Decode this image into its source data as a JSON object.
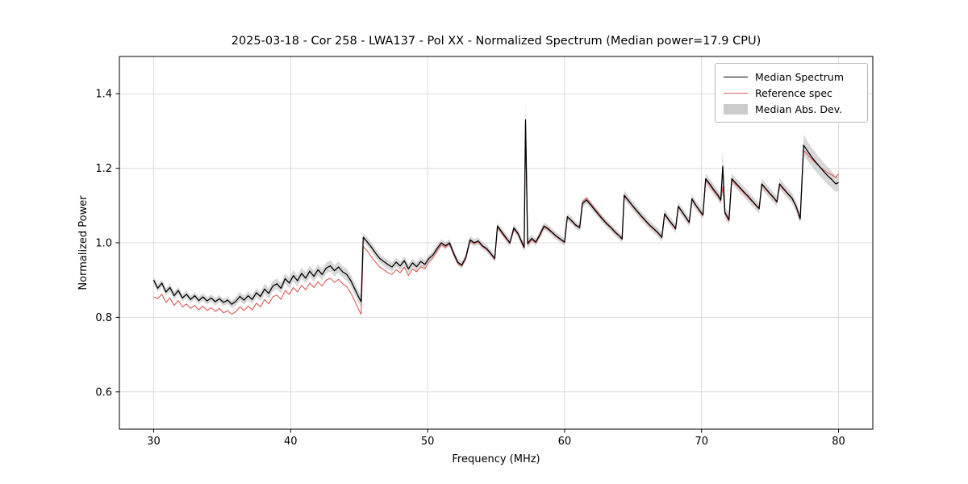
{
  "figure": {
    "background": "#ffffff"
  },
  "chart_data": {
    "type": "line",
    "title": "2025-03-18 - Cor 258 - LWA137 - Pol XX - Normalized Spectrum (Median power=17.9 CPU)",
    "xlabel": "Frequency (MHz)",
    "ylabel": "Normalized Power",
    "xlim": [
      27.5,
      82.5
    ],
    "ylim": [
      0.5,
      1.5
    ],
    "xticks": [
      30,
      40,
      50,
      60,
      70,
      80
    ],
    "xtick_labels": [
      "30",
      "40",
      "50",
      "60",
      "70",
      "80"
    ],
    "yticks": [
      0.6,
      0.8,
      1.0,
      1.2,
      1.4
    ],
    "ytick_labels": [
      "0.6",
      "0.8",
      "1.0",
      "1.2",
      "1.4"
    ],
    "grid": true,
    "grid_color": "#dcdcdc",
    "legend_position": "upper right",
    "series": [
      {
        "name": "Median Spectrum",
        "color": "#000000",
        "style": "line"
      },
      {
        "name": "Reference spec",
        "color": "#e05a5a",
        "style": "line"
      },
      {
        "name": "Median Abs. Dev.",
        "color": "#a8a8a8",
        "style": "band",
        "opacity": 0.45
      }
    ],
    "points_format": [
      "freq_mhz",
      "median",
      "reference",
      "mad_half_width"
    ],
    "points": [
      [
        30.0,
        0.9,
        0.855,
        0.01
      ],
      [
        30.3,
        0.878,
        0.85,
        0.01
      ],
      [
        30.6,
        0.892,
        0.862,
        0.01
      ],
      [
        30.9,
        0.868,
        0.84,
        0.01
      ],
      [
        31.2,
        0.88,
        0.852,
        0.01
      ],
      [
        31.5,
        0.858,
        0.832,
        0.01
      ],
      [
        31.8,
        0.872,
        0.845,
        0.01
      ],
      [
        32.1,
        0.852,
        0.828,
        0.01
      ],
      [
        32.4,
        0.862,
        0.836,
        0.01
      ],
      [
        32.7,
        0.848,
        0.824,
        0.01
      ],
      [
        33.0,
        0.858,
        0.832,
        0.01
      ],
      [
        33.3,
        0.845,
        0.82,
        0.01
      ],
      [
        33.6,
        0.855,
        0.83,
        0.01
      ],
      [
        33.9,
        0.844,
        0.818,
        0.01
      ],
      [
        34.2,
        0.852,
        0.826,
        0.01
      ],
      [
        34.5,
        0.842,
        0.816,
        0.01
      ],
      [
        34.8,
        0.85,
        0.824,
        0.01
      ],
      [
        35.1,
        0.84,
        0.812,
        0.01
      ],
      [
        35.4,
        0.846,
        0.818,
        0.01
      ],
      [
        35.7,
        0.835,
        0.808,
        0.01
      ],
      [
        36.0,
        0.843,
        0.815,
        0.012
      ],
      [
        36.3,
        0.856,
        0.828,
        0.012
      ],
      [
        36.6,
        0.846,
        0.818,
        0.012
      ],
      [
        36.9,
        0.858,
        0.83,
        0.012
      ],
      [
        37.2,
        0.848,
        0.82,
        0.012
      ],
      [
        37.5,
        0.866,
        0.838,
        0.012
      ],
      [
        37.8,
        0.856,
        0.828,
        0.012
      ],
      [
        38.1,
        0.876,
        0.848,
        0.014
      ],
      [
        38.4,
        0.864,
        0.836,
        0.014
      ],
      [
        38.7,
        0.884,
        0.855,
        0.014
      ],
      [
        39.0,
        0.89,
        0.86,
        0.014
      ],
      [
        39.3,
        0.878,
        0.848,
        0.014
      ],
      [
        39.6,
        0.904,
        0.872,
        0.014
      ],
      [
        39.9,
        0.892,
        0.862,
        0.014
      ],
      [
        40.2,
        0.912,
        0.88,
        0.015
      ],
      [
        40.5,
        0.898,
        0.868,
        0.015
      ],
      [
        40.8,
        0.918,
        0.886,
        0.015
      ],
      [
        41.1,
        0.905,
        0.874,
        0.015
      ],
      [
        41.4,
        0.924,
        0.892,
        0.015
      ],
      [
        41.7,
        0.91,
        0.88,
        0.015
      ],
      [
        42.0,
        0.928,
        0.895,
        0.015
      ],
      [
        42.3,
        0.915,
        0.884,
        0.015
      ],
      [
        42.6,
        0.932,
        0.9,
        0.015
      ],
      [
        42.9,
        0.938,
        0.905,
        0.015
      ],
      [
        43.2,
        0.925,
        0.894,
        0.015
      ],
      [
        43.5,
        0.935,
        0.902,
        0.015
      ],
      [
        43.8,
        0.922,
        0.89,
        0.015
      ],
      [
        44.1,
        0.915,
        0.882,
        0.016
      ],
      [
        44.4,
        0.898,
        0.865,
        0.016
      ],
      [
        44.7,
        0.875,
        0.842,
        0.016
      ],
      [
        45.0,
        0.852,
        0.818,
        0.016
      ],
      [
        45.15,
        0.842,
        0.808,
        0.014
      ],
      [
        45.3,
        1.015,
        0.99,
        0.012
      ],
      [
        45.6,
        1.002,
        0.978,
        0.012
      ],
      [
        45.9,
        0.988,
        0.962,
        0.012
      ],
      [
        46.2,
        0.972,
        0.948,
        0.012
      ],
      [
        46.5,
        0.958,
        0.935,
        0.012
      ],
      [
        46.8,
        0.95,
        0.928,
        0.012
      ],
      [
        47.1,
        0.942,
        0.92,
        0.012
      ],
      [
        47.4,
        0.935,
        0.915,
        0.012
      ],
      [
        47.7,
        0.948,
        0.928,
        0.012
      ],
      [
        48.0,
        0.938,
        0.92,
        0.012
      ],
      [
        48.3,
        0.952,
        0.935,
        0.012
      ],
      [
        48.6,
        0.93,
        0.912,
        0.012
      ],
      [
        48.9,
        0.946,
        0.93,
        0.012
      ],
      [
        49.2,
        0.936,
        0.922,
        0.012
      ],
      [
        49.5,
        0.95,
        0.936,
        0.012
      ],
      [
        49.8,
        0.942,
        0.93,
        0.012
      ],
      [
        50.1,
        0.958,
        0.948,
        0.01
      ],
      [
        50.4,
        0.968,
        0.96,
        0.01
      ],
      [
        50.7,
        0.985,
        0.978,
        0.01
      ],
      [
        51.0,
        1.0,
        0.995,
        0.01
      ],
      [
        51.3,
        0.992,
        0.988,
        0.01
      ],
      [
        51.6,
        1.0,
        0.996,
        0.01
      ],
      [
        51.9,
        0.972,
        0.968,
        0.01
      ],
      [
        52.2,
        0.948,
        0.944,
        0.01
      ],
      [
        52.5,
        0.94,
        0.938,
        0.01
      ],
      [
        52.8,
        0.962,
        0.958,
        0.01
      ],
      [
        53.1,
        1.008,
        1.004,
        0.01
      ],
      [
        53.4,
        1.0,
        0.998,
        0.01
      ],
      [
        53.7,
        1.005,
        1.002,
        0.01
      ],
      [
        54.0,
        0.992,
        0.99,
        0.01
      ],
      [
        54.3,
        0.985,
        0.982,
        0.01
      ],
      [
        54.6,
        0.972,
        0.97,
        0.01
      ],
      [
        54.9,
        0.958,
        0.955,
        0.01
      ],
      [
        55.1,
        1.045,
        1.04,
        0.01
      ],
      [
        55.4,
        1.03,
        1.026,
        0.01
      ],
      [
        55.7,
        1.015,
        1.012,
        0.01
      ],
      [
        56.0,
        1.0,
        0.998,
        0.01
      ],
      [
        56.3,
        1.04,
        1.036,
        0.01
      ],
      [
        56.6,
        1.025,
        1.022,
        0.01
      ],
      [
        56.9,
        1.0,
        0.996,
        0.01
      ],
      [
        57.05,
        0.988,
        0.985,
        0.012
      ],
      [
        57.15,
        1.33,
        1.32,
        0.058
      ],
      [
        57.3,
        0.998,
        0.995,
        0.014
      ],
      [
        57.6,
        1.012,
        1.008,
        0.01
      ],
      [
        57.9,
        1.002,
        1.0,
        0.01
      ],
      [
        58.2,
        1.022,
        1.018,
        0.01
      ],
      [
        58.5,
        1.045,
        1.042,
        0.01
      ],
      [
        58.8,
        1.038,
        1.035,
        0.01
      ],
      [
        59.1,
        1.028,
        1.026,
        0.01
      ],
      [
        59.4,
        1.018,
        1.016,
        0.01
      ],
      [
        59.7,
        1.01,
        1.008,
        0.01
      ],
      [
        60.0,
        1.002,
        1.0,
        0.01
      ],
      [
        60.2,
        1.07,
        1.068,
        0.01
      ],
      [
        60.5,
        1.06,
        1.058,
        0.01
      ],
      [
        60.8,
        1.048,
        1.046,
        0.01
      ],
      [
        61.1,
        1.04,
        1.045,
        0.01
      ],
      [
        61.3,
        1.105,
        1.11,
        0.01
      ],
      [
        61.6,
        1.115,
        1.12,
        0.01
      ],
      [
        61.9,
        1.102,
        1.106,
        0.01
      ],
      [
        62.2,
        1.088,
        1.092,
        0.01
      ],
      [
        62.5,
        1.075,
        1.078,
        0.01
      ],
      [
        62.8,
        1.062,
        1.065,
        0.01
      ],
      [
        63.1,
        1.05,
        1.052,
        0.01
      ],
      [
        63.4,
        1.04,
        1.042,
        0.01
      ],
      [
        63.7,
        1.028,
        1.03,
        0.01
      ],
      [
        64.0,
        1.018,
        1.02,
        0.01
      ],
      [
        64.2,
        1.01,
        1.012,
        0.01
      ],
      [
        64.35,
        1.128,
        1.125,
        0.012
      ],
      [
        64.7,
        1.112,
        1.11,
        0.012
      ],
      [
        65.0,
        1.098,
        1.096,
        0.012
      ],
      [
        65.3,
        1.085,
        1.083,
        0.012
      ],
      [
        65.6,
        1.072,
        1.07,
        0.012
      ],
      [
        65.9,
        1.06,
        1.058,
        0.012
      ],
      [
        66.2,
        1.048,
        1.046,
        0.012
      ],
      [
        66.5,
        1.038,
        1.036,
        0.012
      ],
      [
        66.8,
        1.028,
        1.026,
        0.012
      ],
      [
        67.1,
        1.015,
        1.013,
        0.012
      ],
      [
        67.3,
        1.078,
        1.076,
        0.012
      ],
      [
        67.6,
        1.062,
        1.06,
        0.012
      ],
      [
        67.9,
        1.048,
        1.046,
        0.012
      ],
      [
        68.1,
        1.038,
        1.036,
        0.012
      ],
      [
        68.3,
        1.098,
        1.096,
        0.012
      ],
      [
        68.6,
        1.082,
        1.08,
        0.012
      ],
      [
        68.9,
        1.066,
        1.064,
        0.012
      ],
      [
        69.1,
        1.055,
        1.053,
        0.012
      ],
      [
        69.3,
        1.118,
        1.115,
        0.012
      ],
      [
        69.6,
        1.1,
        1.098,
        0.012
      ],
      [
        69.9,
        1.085,
        1.082,
        0.012
      ],
      [
        70.1,
        1.075,
        1.072,
        0.012
      ],
      [
        70.3,
        1.172,
        1.168,
        0.014
      ],
      [
        70.6,
        1.158,
        1.154,
        0.014
      ],
      [
        70.9,
        1.142,
        1.138,
        0.014
      ],
      [
        71.2,
        1.128,
        1.124,
        0.014
      ],
      [
        71.4,
        1.115,
        1.112,
        0.014
      ],
      [
        71.55,
        1.205,
        1.15,
        0.045
      ],
      [
        71.7,
        1.082,
        1.078,
        0.016
      ],
      [
        72.0,
        1.062,
        1.058,
        0.014
      ],
      [
        72.2,
        1.172,
        1.168,
        0.014
      ],
      [
        72.5,
        1.16,
        1.156,
        0.014
      ],
      [
        72.8,
        1.148,
        1.145,
        0.014
      ],
      [
        73.1,
        1.136,
        1.133,
        0.014
      ],
      [
        73.4,
        1.125,
        1.122,
        0.014
      ],
      [
        73.7,
        1.112,
        1.11,
        0.014
      ],
      [
        74.0,
        1.1,
        1.098,
        0.014
      ],
      [
        74.2,
        1.092,
        1.09,
        0.014
      ],
      [
        74.4,
        1.158,
        1.155,
        0.014
      ],
      [
        74.7,
        1.145,
        1.142,
        0.014
      ],
      [
        75.0,
        1.132,
        1.13,
        0.014
      ],
      [
        75.3,
        1.12,
        1.118,
        0.014
      ],
      [
        75.5,
        1.11,
        1.108,
        0.014
      ],
      [
        75.7,
        1.158,
        1.155,
        0.014
      ],
      [
        76.0,
        1.145,
        1.142,
        0.014
      ],
      [
        76.3,
        1.132,
        1.13,
        0.014
      ],
      [
        76.6,
        1.12,
        1.118,
        0.014
      ],
      [
        76.9,
        1.098,
        1.096,
        0.014
      ],
      [
        77.2,
        1.065,
        1.062,
        0.014
      ],
      [
        77.45,
        1.262,
        1.248,
        0.028
      ],
      [
        77.7,
        1.248,
        1.238,
        0.026
      ],
      [
        78.0,
        1.232,
        1.226,
        0.025
      ],
      [
        78.3,
        1.218,
        1.215,
        0.025
      ],
      [
        78.6,
        1.205,
        1.205,
        0.024
      ],
      [
        78.9,
        1.192,
        1.196,
        0.024
      ],
      [
        79.2,
        1.18,
        1.188,
        0.023
      ],
      [
        79.5,
        1.17,
        1.182,
        0.023
      ],
      [
        79.8,
        1.158,
        1.175,
        0.022
      ],
      [
        80.0,
        1.162,
        1.185,
        0.022
      ]
    ]
  }
}
